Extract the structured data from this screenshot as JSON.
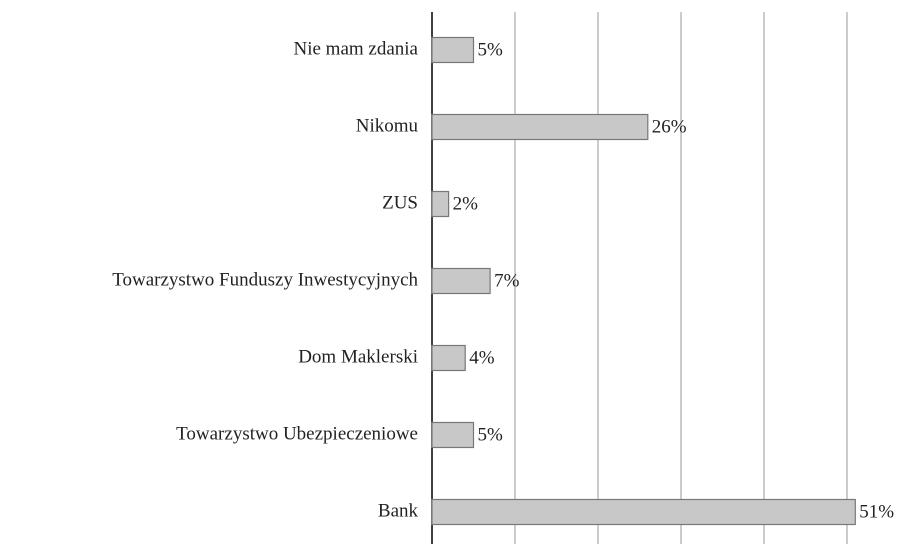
{
  "chart_data": {
    "type": "barh",
    "categories": [
      "Nie mam zdania",
      "Nikomu",
      "ZUS",
      "Towarzystwo Funduszy Inwestycyjnych",
      "Dom Maklerski",
      "Towarzystwo Ubezpieczeniowe",
      "Bank"
    ],
    "values": [
      5,
      26,
      2,
      7,
      4,
      5,
      51
    ],
    "value_labels": [
      "5%",
      "26%",
      "2%",
      "7%",
      "4%",
      "5%",
      "51%"
    ],
    "color": "#c8c8c8",
    "xlim": [
      0,
      55
    ],
    "xticks": [
      0,
      10,
      20,
      30,
      40,
      50
    ],
    "grid": true
  }
}
